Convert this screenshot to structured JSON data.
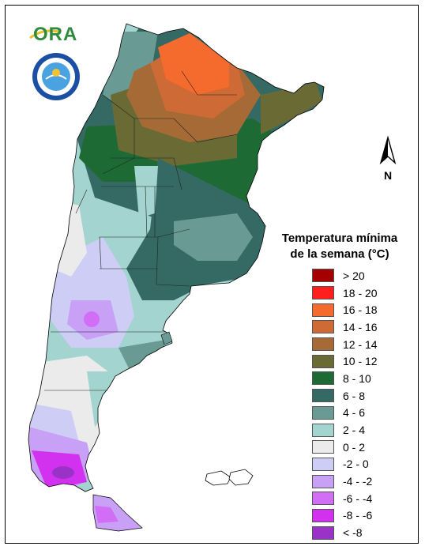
{
  "logo": {
    "brand_text": "ORA",
    "seal_text": "SERVICIO METEOROLOGICO NACIONAL · ARGENTINA"
  },
  "north_arrow": {
    "label": "N"
  },
  "legend": {
    "title_line1": "Temperatura mínima",
    "title_line2": "de la semana (°C)",
    "items": [
      {
        "label": "> 20",
        "color": "#a50000"
      },
      {
        "label": "18 - 20",
        "color": "#ff1e1e"
      },
      {
        "label": "16 - 18",
        "color": "#f56a2d"
      },
      {
        "label": "14 - 16",
        "color": "#cd6a35"
      },
      {
        "label": "12 - 14",
        "color": "#a56a35"
      },
      {
        "label": "10 - 12",
        "color": "#6a6a35"
      },
      {
        "label": "8 - 10",
        "color": "#1e6a35"
      },
      {
        "label": "6 - 8",
        "color": "#356a64"
      },
      {
        "label": "4 - 6",
        "color": "#6a9a94"
      },
      {
        "label": "2 - 4",
        "color": "#a3d4cf"
      },
      {
        "label": "0 - 2",
        "color": "#ebebeb"
      },
      {
        "label": "-2 - 0",
        "color": "#cdcdf5"
      },
      {
        "label": "-4 - -2",
        "color": "#c8a0f5"
      },
      {
        "label": "-6 - -4",
        "color": "#d26ef5"
      },
      {
        "label": "-8 - -6",
        "color": "#d232f0"
      },
      {
        "label": "< -8",
        "color": "#9b32c8"
      }
    ]
  }
}
